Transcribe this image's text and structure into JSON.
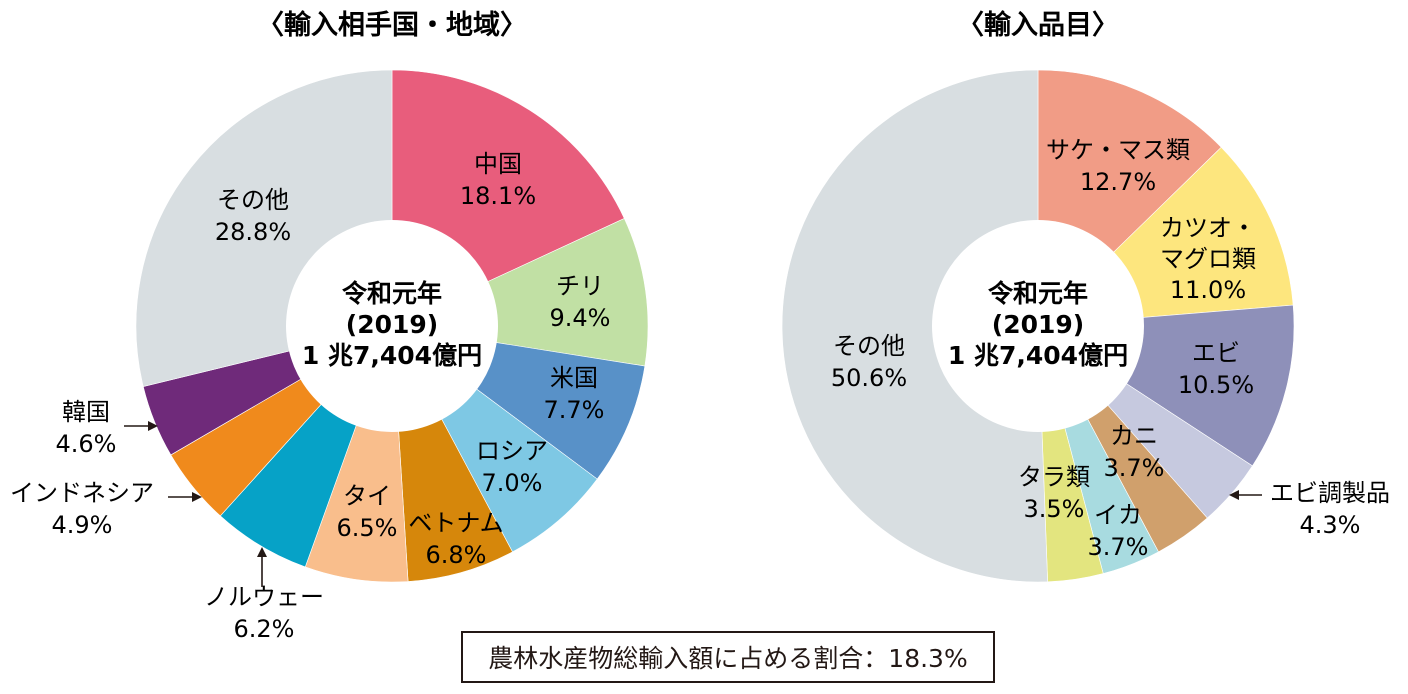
{
  "chart_data": [
    {
      "type": "pie",
      "title": "〈輸入相手国・地域〉",
      "center": {
        "line1": "令和元年",
        "line2": "(2019)",
        "line3": "1 兆7,404億円"
      },
      "slices": [
        {
          "name": "中国",
          "value": 18.1,
          "display": "18.1%",
          "color": "#e85d7c"
        },
        {
          "name": "チリ",
          "value": 9.4,
          "display": "9.4%",
          "color": "#c1e0a4"
        },
        {
          "name": "米国",
          "value": 7.7,
          "display": "7.7%",
          "color": "#5891c8"
        },
        {
          "name": "ロシア",
          "value": 7.0,
          "display": "7.0%",
          "color": "#7ec8e4"
        },
        {
          "name": "ベトナム",
          "value": 6.8,
          "display": "6.8%",
          "color": "#d6870b"
        },
        {
          "name": "タイ",
          "value": 6.5,
          "display": "6.5%",
          "color": "#f9be8c"
        },
        {
          "name": "ノルウェー",
          "value": 6.2,
          "display": "6.2%",
          "color": "#06a2c7"
        },
        {
          "name": "インドネシア",
          "value": 4.9,
          "display": "4.9%",
          "color": "#f08a1c"
        },
        {
          "name": "韓国",
          "value": 4.6,
          "display": "4.6%",
          "color": "#6f2a7a"
        },
        {
          "name": "その他",
          "value": 28.8,
          "display": "28.8%",
          "color": "#d8dee1"
        }
      ]
    },
    {
      "type": "pie",
      "title": "〈輸入品目〉",
      "center": {
        "line1": "令和元年",
        "line2": "(2019)",
        "line3": "1 兆7,404億円"
      },
      "slices": [
        {
          "name": "サケ・マス類",
          "value": 12.7,
          "display": "12.7%",
          "color": "#f19c86"
        },
        {
          "name": "カツオ・マグロ類",
          "value": 11.0,
          "display": "11.0%",
          "color": "#fde67e"
        },
        {
          "name": "エビ",
          "value": 10.5,
          "display": "10.5%",
          "color": "#8e90b9"
        },
        {
          "name": "エビ調製品",
          "value": 4.3,
          "display": "4.3%",
          "color": "#c6c9df"
        },
        {
          "name": "カニ",
          "value": 3.7,
          "display": "3.7%",
          "color": "#d0a06c"
        },
        {
          "name": "イカ",
          "value": 3.7,
          "display": "3.7%",
          "color": "#a8dbe0"
        },
        {
          "name": "タラ類",
          "value": 3.5,
          "display": "3.5%",
          "color": "#e3e57f"
        },
        {
          "name": "その他",
          "value": 50.6,
          "display": "50.6%",
          "color": "#d8dee1"
        }
      ]
    }
  ],
  "footer": {
    "text": "農林水産物総輸入額に占める割合：18.3%"
  }
}
